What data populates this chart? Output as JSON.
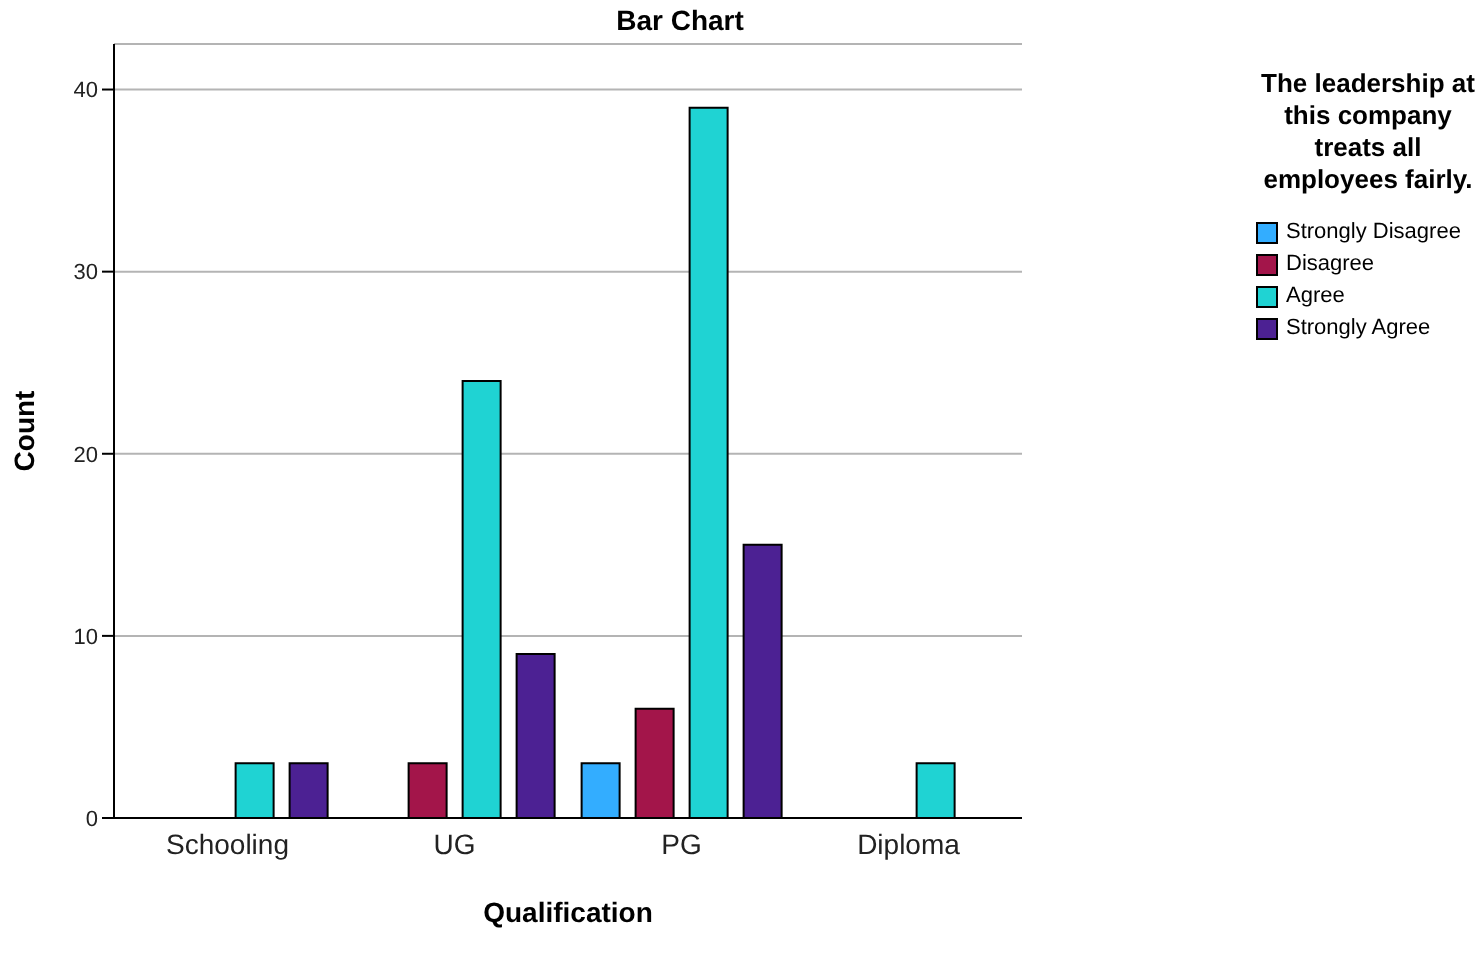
{
  "chart_data": {
    "type": "bar",
    "title": "Bar Chart",
    "xlabel": "Qualification",
    "ylabel": "Count",
    "legend_title": "The leadership at this company treats all employees fairly.",
    "categories": [
      "Schooling",
      "UG",
      "PG",
      "Diploma"
    ],
    "series": [
      {
        "name": "Strongly Disagree",
        "color": "#33adff",
        "values": [
          null,
          null,
          3,
          null
        ]
      },
      {
        "name": "Disagree",
        "color": "#a3154a",
        "values": [
          null,
          3,
          6,
          null
        ]
      },
      {
        "name": "Agree",
        "color": "#1fd3d3",
        "values": [
          3,
          24,
          39,
          3
        ]
      },
      {
        "name": "Strongly Agree",
        "color": "#4c2193",
        "values": [
          3,
          9,
          15,
          null
        ]
      }
    ],
    "ylim": [
      0,
      42.5
    ],
    "yticks": [
      0,
      10,
      20,
      30,
      40
    ],
    "grid": "y",
    "legend": "top right"
  }
}
